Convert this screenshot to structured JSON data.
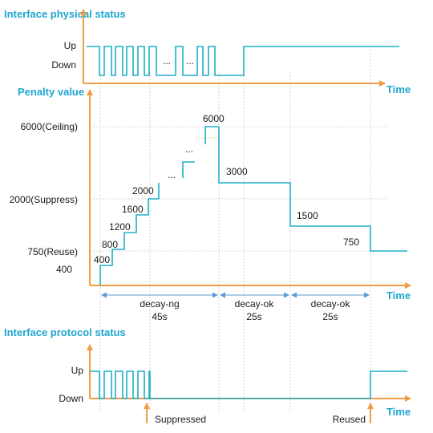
{
  "physical": {
    "title": "Interface physical status",
    "up_label": "Up",
    "down_label": "Down",
    "time_label": "Time",
    "dots_1": "...",
    "dots_2": "..."
  },
  "penalty": {
    "title": "Penalty value",
    "time_label": "Time",
    "y_labels": {
      "ceiling": "6000(Ceiling)",
      "suppress": "2000(Suppress)",
      "reuse": "750(Reuse)",
      "base": "400"
    },
    "step_labels": [
      "400",
      "800",
      "1200",
      "1600",
      "2000"
    ],
    "dots": [
      "...",
      "..."
    ],
    "peak_label": "6000",
    "decay_labels": [
      "3000",
      "1500",
      "750"
    ],
    "segments": [
      {
        "name": "decay-ng",
        "duration": "45s"
      },
      {
        "name": "decay-ok",
        "duration": "25s"
      },
      {
        "name": "decay-ok",
        "duration": "25s"
      }
    ]
  },
  "protocol": {
    "title": "Interface protocol status",
    "up_label": "Up",
    "down_label": "Down",
    "time_label": "Time",
    "suppressed_label": "Suppressed",
    "reused_label": "Reused"
  },
  "colors": {
    "axis": "#f29a44",
    "signal": "#1eb0c8",
    "title": "#1ea6cf",
    "segment_arrow": "#5a9bd5"
  }
}
